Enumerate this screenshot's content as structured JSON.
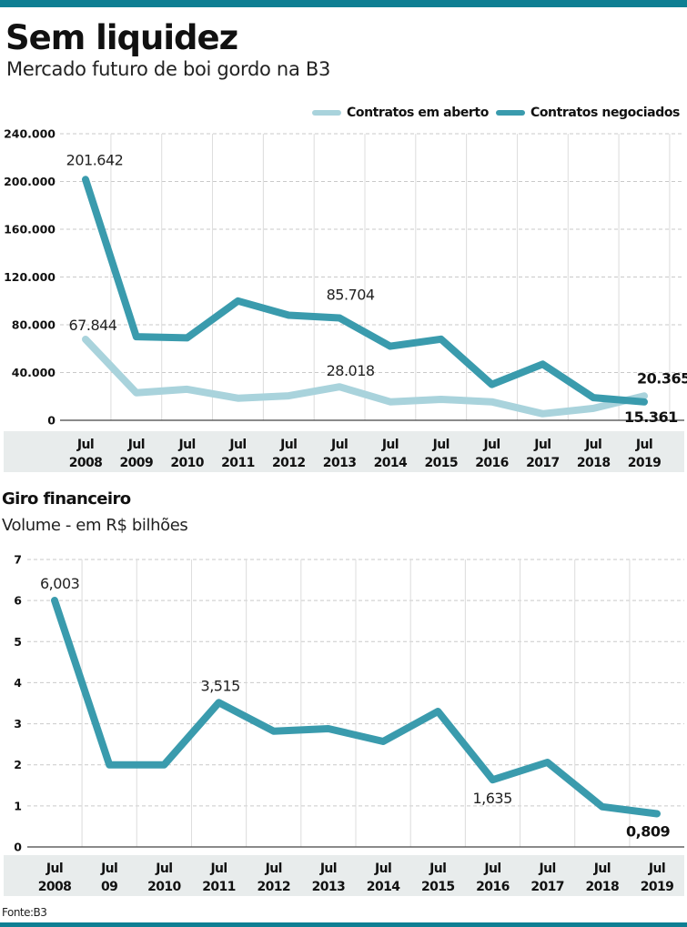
{
  "header": {
    "title": "Sem liquidez",
    "subtitle": "Mercado futuro de boi gordo na B3"
  },
  "colors": {
    "brand_bar": "#0e7f93",
    "series_dark": "#3a9bad",
    "series_light": "#a9d3dc",
    "xaxis_band": "#e8ecec"
  },
  "source": "Fonte:B3",
  "chart_data": [
    {
      "type": "line",
      "title": "Sem liquidez",
      "subtitle": "Mercado futuro de boi gordo na B3",
      "xlabel": "",
      "ylabel": "",
      "categories": [
        {
          "top": "Jul",
          "bottom": "2008"
        },
        {
          "top": "Jul",
          "bottom": "2009"
        },
        {
          "top": "Jul",
          "bottom": "2010"
        },
        {
          "top": "Jul",
          "bottom": "2011"
        },
        {
          "top": "Jul",
          "bottom": "2012"
        },
        {
          "top": "Jul",
          "bottom": "2013"
        },
        {
          "top": "Jul",
          "bottom": "2014"
        },
        {
          "top": "Jul",
          "bottom": "2015"
        },
        {
          "top": "Jul",
          "bottom": "2016"
        },
        {
          "top": "Jul",
          "bottom": "2017"
        },
        {
          "top": "Jul",
          "bottom": "2018"
        },
        {
          "top": "Jul",
          "bottom": "2019"
        }
      ],
      "ylim": [
        0,
        240000
      ],
      "yticks": [
        {
          "value": 0,
          "label": "0"
        },
        {
          "value": 40000,
          "label": "40.000"
        },
        {
          "value": 80000,
          "label": "80.000"
        },
        {
          "value": 120000,
          "label": "120.000"
        },
        {
          "value": 160000,
          "label": "160.000"
        },
        {
          "value": 200000,
          "label": "200.000"
        },
        {
          "value": 240000,
          "label": "240.000"
        }
      ],
      "grid": true,
      "legend_position": "top-right",
      "series": [
        {
          "name": "Contratos em aberto",
          "color": "#a9d3dc",
          "values": [
            67844,
            23000,
            26000,
            18500,
            20500,
            28018,
            15500,
            17500,
            15500,
            5500,
            10000,
            20365
          ]
        },
        {
          "name": "Contratos negociados",
          "color": "#3a9bad",
          "values": [
            201642,
            70000,
            69000,
            100000,
            88000,
            85704,
            62000,
            68000,
            30000,
            47000,
            19000,
            15361
          ]
        }
      ],
      "annotations": [
        {
          "series": 1,
          "index": 0,
          "text": "201.642",
          "bold": false
        },
        {
          "series": 0,
          "index": 0,
          "text": "67.844",
          "bold": false
        },
        {
          "series": 1,
          "index": 5,
          "text": "85.704",
          "bold": false
        },
        {
          "series": 0,
          "index": 5,
          "text": "28.018",
          "bold": false
        },
        {
          "series": 0,
          "index": 11,
          "text": "20.365",
          "bold": true
        },
        {
          "series": 1,
          "index": 11,
          "text": "15.361",
          "bold": true
        }
      ]
    },
    {
      "type": "line",
      "title": "Giro financeiro",
      "subtitle": "Volume - em R$ bilhões",
      "xlabel": "",
      "ylabel": "",
      "categories": [
        {
          "top": "Jul",
          "bottom": "2008"
        },
        {
          "top": "Jul",
          "bottom": "09"
        },
        {
          "top": "Jul",
          "bottom": "2010"
        },
        {
          "top": "Jul",
          "bottom": "2011"
        },
        {
          "top": "Jul",
          "bottom": "2012"
        },
        {
          "top": "Jul",
          "bottom": "2013"
        },
        {
          "top": "Jul",
          "bottom": "2014"
        },
        {
          "top": "Jul",
          "bottom": "2015"
        },
        {
          "top": "Jul",
          "bottom": "2016"
        },
        {
          "top": "Jul",
          "bottom": "2017"
        },
        {
          "top": "Jul",
          "bottom": "2018"
        },
        {
          "top": "Jul",
          "bottom": "2019"
        }
      ],
      "ylim": [
        0,
        7
      ],
      "yticks": [
        {
          "value": 0,
          "label": "0"
        },
        {
          "value": 1,
          "label": "1"
        },
        {
          "value": 2,
          "label": "2"
        },
        {
          "value": 3,
          "label": "3"
        },
        {
          "value": 4,
          "label": "4"
        },
        {
          "value": 5,
          "label": "5"
        },
        {
          "value": 6,
          "label": "6"
        },
        {
          "value": 7,
          "label": "7"
        }
      ],
      "grid": true,
      "series": [
        {
          "name": "Volume (R$ bilhões)",
          "color": "#3a9bad",
          "values": [
            6.003,
            2.0,
            2.0,
            3.515,
            2.82,
            2.88,
            2.57,
            3.3,
            1.635,
            2.06,
            0.98,
            0.809
          ]
        }
      ],
      "annotations": [
        {
          "series": 0,
          "index": 0,
          "text": "6,003",
          "bold": false
        },
        {
          "series": 0,
          "index": 3,
          "text": "3,515",
          "bold": false
        },
        {
          "series": 0,
          "index": 8,
          "text": "1,635",
          "bold": false
        },
        {
          "series": 0,
          "index": 11,
          "text": "0,809",
          "bold": true
        }
      ]
    }
  ]
}
